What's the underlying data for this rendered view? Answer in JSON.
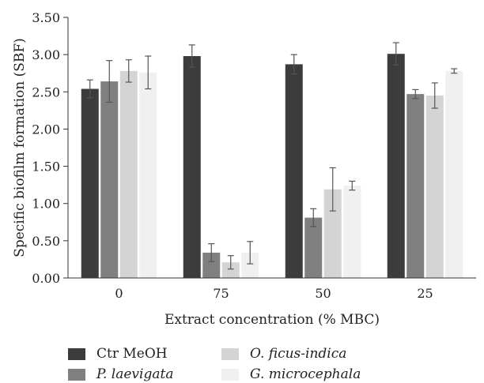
{
  "chart_data": {
    "type": "bar",
    "title": "",
    "xlabel": "Extract concentration (% MBC)",
    "ylabel": "Specific biofilm formation (SBF)",
    "categories": [
      "0",
      "75",
      "50",
      "25"
    ],
    "ylim": [
      0,
      3.5
    ],
    "yticks": [
      "0.00",
      "0.50",
      "1.00",
      "1.50",
      "2.00",
      "2.50",
      "3.00",
      "3.50"
    ],
    "grid": false,
    "legend_position": "bottom",
    "series": [
      {
        "name": "Ctr MeOH",
        "color": "#3c3c3c",
        "italic": false,
        "values": [
          2.54,
          2.98,
          2.87,
          3.01
        ],
        "errors": [
          0.12,
          0.15,
          0.13,
          0.15
        ]
      },
      {
        "name": "P. laevigata",
        "color": "#808080",
        "italic": true,
        "values": [
          2.64,
          0.34,
          0.81,
          2.47
        ],
        "errors": [
          0.28,
          0.12,
          0.12,
          0.06
        ]
      },
      {
        "name": "O. ficus-indica",
        "color": "#d4d4d4",
        "italic": true,
        "values": [
          2.78,
          0.21,
          1.19,
          2.45
        ],
        "errors": [
          0.15,
          0.09,
          0.29,
          0.17
        ]
      },
      {
        "name": "G. microcephala",
        "color": "#f0f0f0",
        "italic": true,
        "values": [
          2.76,
          0.34,
          1.24,
          2.78
        ],
        "errors": [
          0.22,
          0.15,
          0.06,
          0.03
        ]
      }
    ]
  }
}
